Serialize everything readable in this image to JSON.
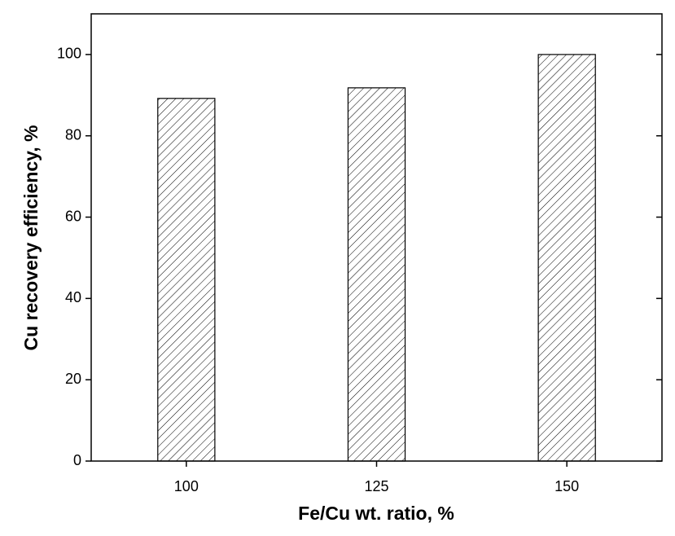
{
  "chart_data": {
    "type": "bar",
    "x_label": "Fe/Cu wt. ratio, %",
    "y_label": "Cu recovery efficiency, %",
    "categories": [
      "100",
      "125",
      "150"
    ],
    "values": [
      89.2,
      91.8,
      100
    ],
    "color": "#000000",
    "hatch": true,
    "ylim": [
      0,
      110
    ],
    "yticks": [
      0,
      20,
      40,
      60,
      80,
      100
    ],
    "grid": false
  }
}
